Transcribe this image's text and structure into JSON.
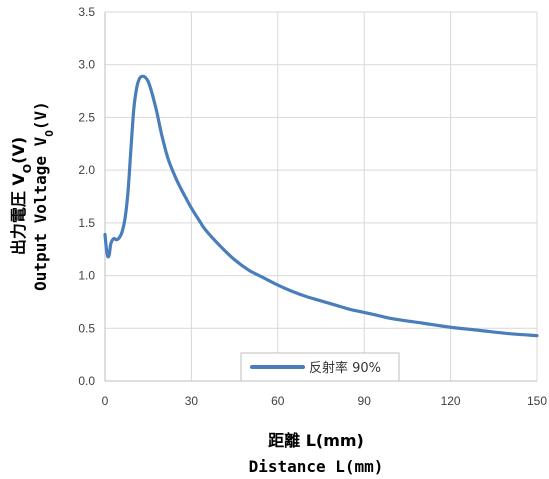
{
  "chart_data": {
    "type": "line",
    "xlabel_jp": "距離 L(mm)",
    "xlabel_en": "Distance L(mm)",
    "ylabel_jp": "出力電圧 V",
    "ylabel_jp_sub": "O",
    "ylabel_jp_tail": "(V)",
    "ylabel_en": "Output Voltage V",
    "ylabel_en_sub": "O",
    "ylabel_en_tail": "(V)",
    "xlim": [
      0,
      150
    ],
    "ylim": [
      0,
      3.5
    ],
    "xticks": [
      0,
      30,
      60,
      90,
      120,
      150
    ],
    "yticks": [
      "0.0",
      "0.5",
      "1.0",
      "1.5",
      "2.0",
      "2.5",
      "3.0",
      "3.5"
    ],
    "grid": true,
    "legend_position": "bottom-center",
    "series": [
      {
        "name": "反射率 90%",
        "color": "#4a7ebb",
        "x": [
          0,
          0.5,
          1,
          1.5,
          2,
          3,
          4,
          5,
          6,
          7,
          8,
          9,
          10,
          11,
          12,
          13,
          14,
          15,
          16,
          17,
          18,
          19,
          20,
          22,
          25,
          28,
          30,
          33,
          35,
          40,
          45,
          50,
          55,
          60,
          65,
          70,
          75,
          80,
          85,
          90,
          95,
          100,
          110,
          120,
          130,
          140,
          150
        ],
        "y": [
          1.39,
          1.25,
          1.18,
          1.2,
          1.3,
          1.35,
          1.34,
          1.36,
          1.42,
          1.55,
          1.8,
          2.2,
          2.58,
          2.78,
          2.87,
          2.89,
          2.88,
          2.84,
          2.76,
          2.66,
          2.55,
          2.42,
          2.3,
          2.1,
          1.9,
          1.74,
          1.64,
          1.51,
          1.43,
          1.28,
          1.15,
          1.05,
          0.98,
          0.91,
          0.85,
          0.8,
          0.76,
          0.72,
          0.68,
          0.65,
          0.62,
          0.59,
          0.55,
          0.51,
          0.48,
          0.45,
          0.43
        ]
      }
    ]
  }
}
